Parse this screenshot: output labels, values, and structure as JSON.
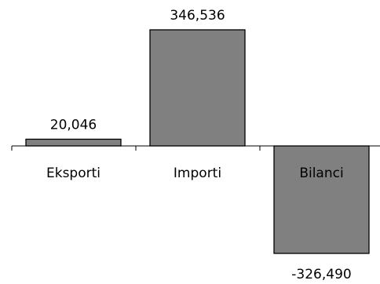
{
  "chart_data": {
    "type": "bar",
    "categories": [
      "Eksporti",
      "Importi",
      "Bilanci"
    ],
    "values": [
      20046,
      346536,
      -326490
    ],
    "value_labels": [
      "20,046",
      "346,536",
      "-326,490"
    ],
    "title": "",
    "xlabel": "",
    "ylabel": "",
    "ylim": [
      -326490,
      346536
    ],
    "grid": false,
    "legend": "none",
    "bar_color": "#808080"
  }
}
